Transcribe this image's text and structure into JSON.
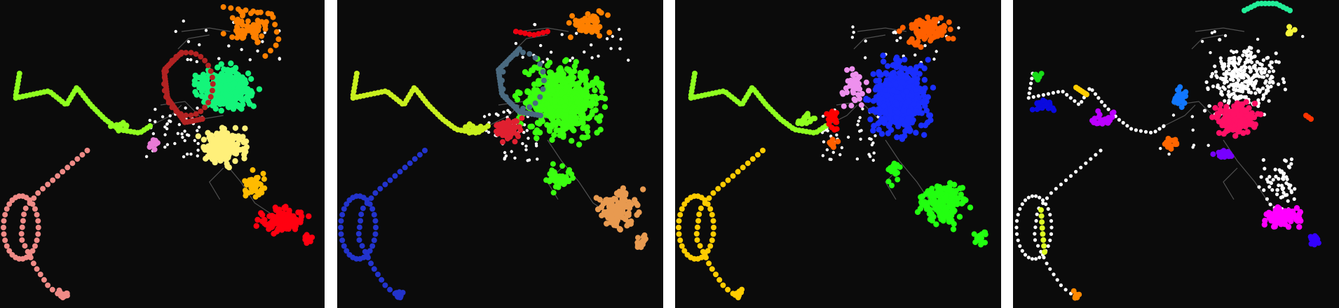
{
  "figure": {
    "background": "#ffffff",
    "panel_background": "#0b0b0b",
    "edge_color": "#8a8a8a",
    "unassigned_node_color": "#ffffff",
    "panels": [
      {
        "id": "panel-1",
        "clusters": [
          {
            "color": "#8fff1f"
          },
          {
            "color": "#f08a86"
          },
          {
            "color": "#ff8000"
          },
          {
            "color": "#14f57a"
          },
          {
            "color": "#b22222"
          },
          {
            "color": "#fff07a"
          },
          {
            "color": "#ffbb00"
          },
          {
            "color": "#ff0010"
          },
          {
            "color": "#e87ad6"
          }
        ]
      },
      {
        "id": "panel-2",
        "clusters": [
          {
            "color": "#c8f01e"
          },
          {
            "color": "#2233cc"
          },
          {
            "color": "#ff8000"
          },
          {
            "color": "#3bff10"
          },
          {
            "color": "#4a6a80"
          },
          {
            "color": "#e02030"
          },
          {
            "color": "#e89a50"
          },
          {
            "color": "#ee0010"
          }
        ]
      },
      {
        "id": "panel-3",
        "clusters": [
          {
            "color": "#8fff1f"
          },
          {
            "color": "#ffcc00"
          },
          {
            "color": "#ff6000"
          },
          {
            "color": "#1a2fff"
          },
          {
            "color": "#ee90ee"
          },
          {
            "color": "#ff0000"
          },
          {
            "color": "#22ff10"
          }
        ]
      },
      {
        "id": "panel-4",
        "clusters": [
          {
            "color": "#22ee99"
          },
          {
            "color": "#f5f53a"
          },
          {
            "color": "#18dd18"
          },
          {
            "color": "#0a0adf"
          },
          {
            "color": "#ffcc00"
          },
          {
            "color": "#bb00ff"
          },
          {
            "color": "#1177ff"
          },
          {
            "color": "#ff1166"
          },
          {
            "color": "#ff6600"
          },
          {
            "color": "#ddff22"
          },
          {
            "color": "#7700ff"
          },
          {
            "color": "#ff00ff"
          },
          {
            "color": "#3300ff"
          },
          {
            "color": "#ff8800"
          },
          {
            "color": "#ff3300"
          }
        ]
      }
    ]
  }
}
